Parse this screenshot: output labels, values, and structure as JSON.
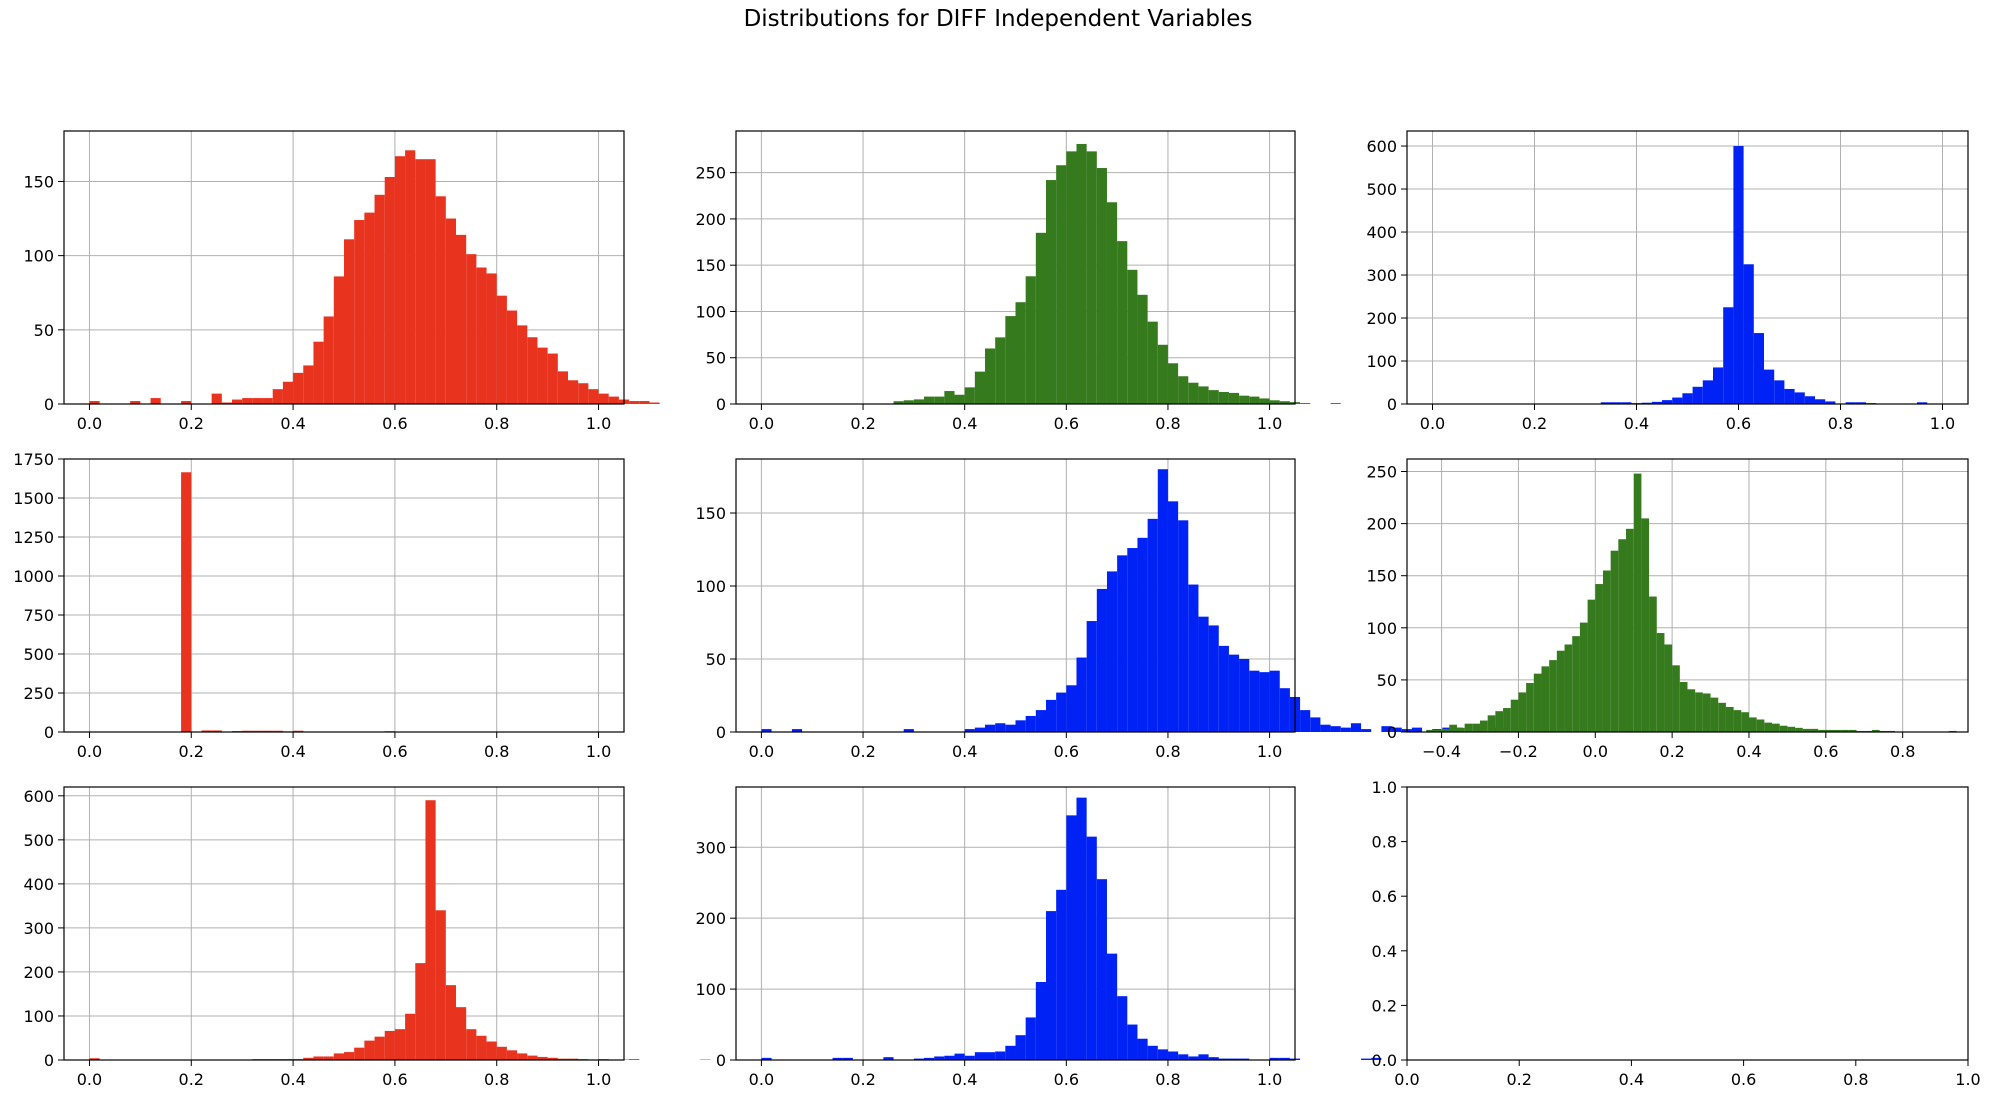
{
  "title": "Distributions for DIFF Independent Variables",
  "colors": {
    "red": "#e8341f",
    "green": "#367a1e",
    "blue": "#0022f5",
    "grid": "#b0b0b0"
  },
  "chart_data": [
    {
      "type": "histogram",
      "color": "#e8341f",
      "grid": true,
      "bins": {
        "start": 0.0,
        "width": 0.02
      },
      "values": [
        2,
        0,
        0,
        0,
        2,
        0,
        4,
        0,
        0,
        2,
        0,
        0,
        7,
        1,
        3,
        4,
        4,
        4,
        10,
        15,
        21,
        26,
        42,
        59,
        86,
        111,
        124,
        129,
        141,
        153,
        167,
        171,
        165,
        165,
        140,
        125,
        114,
        101,
        92,
        88,
        73,
        63,
        53,
        45,
        38,
        34,
        22,
        16,
        14,
        10,
        7,
        5,
        3,
        2,
        2,
        1,
        0,
        0,
        0,
        0,
        0,
        0,
        0,
        0,
        0,
        0,
        0,
        0,
        0,
        0,
        0,
        0,
        0,
        0,
        0,
        0,
        0,
        0,
        0,
        0,
        1
      ],
      "xlim": [
        -0.05,
        1.05
      ],
      "ylim": [
        0,
        184
      ],
      "xticks": [
        0,
        0.2,
        0.4,
        0.6,
        0.8,
        1.0
      ],
      "xtick_labels": [
        "0.0",
        "0.2",
        "0.4",
        "0.6",
        "0.8",
        "1.0"
      ],
      "yticks": [
        0,
        50,
        100,
        150
      ],
      "ytick_labels": [
        "0",
        "50",
        "100",
        "150"
      ]
    },
    {
      "type": "histogram",
      "color": "#367a1e",
      "grid": true,
      "bins": {
        "start": 0.0,
        "width": 0.02
      },
      "values": [
        0,
        0,
        0,
        0,
        0,
        0,
        0,
        0,
        0,
        0,
        0,
        0,
        0,
        3,
        4,
        5,
        8,
        8,
        14,
        10,
        18,
        35,
        60,
        72,
        95,
        110,
        138,
        185,
        242,
        258,
        273,
        281,
        273,
        255,
        218,
        176,
        145,
        118,
        89,
        64,
        44,
        30,
        23,
        19,
        15,
        13,
        12,
        9,
        8,
        6,
        4,
        3,
        2,
        1,
        0,
        0,
        1
      ],
      "xlim": [
        -0.05,
        1.05
      ],
      "ylim": [
        0,
        295
      ],
      "xticks": [
        0,
        0.2,
        0.4,
        0.6,
        0.8,
        1.0
      ],
      "xtick_labels": [
        "0.0",
        "0.2",
        "0.4",
        "0.6",
        "0.8",
        "1.0"
      ],
      "yticks": [
        0,
        50,
        100,
        150,
        200,
        250
      ],
      "ytick_labels": [
        "0",
        "50",
        "100",
        "150",
        "200",
        "250"
      ]
    },
    {
      "type": "histogram",
      "color": "#0022f5",
      "grid": true,
      "bins": {
        "start": 0.33,
        "width": 0.02
      },
      "values": [
        4,
        4,
        4,
        2,
        3,
        5,
        9,
        15,
        25,
        40,
        55,
        85,
        225,
        600,
        325,
        165,
        80,
        55,
        35,
        27,
        18,
        11,
        6,
        0,
        4,
        4,
        2,
        0,
        0,
        0,
        0,
        4
      ],
      "xlim": [
        -0.05,
        1.05
      ],
      "ylim": [
        0,
        635
      ],
      "xticks": [
        0,
        0.2,
        0.4,
        0.6,
        0.8,
        1.0
      ],
      "xtick_labels": [
        "0.0",
        "0.2",
        "0.4",
        "0.6",
        "0.8",
        "1.0"
      ],
      "yticks": [
        0,
        100,
        200,
        300,
        400,
        500,
        600
      ],
      "ytick_labels": [
        "0",
        "100",
        "200",
        "300",
        "400",
        "500",
        "600"
      ]
    },
    {
      "type": "histogram",
      "color": "#e8341f",
      "grid": true,
      "bins": {
        "start": 0.18,
        "width": 0.02
      },
      "values": [
        1665,
        0,
        10,
        10,
        0,
        6,
        8,
        8,
        8,
        8,
        4,
        8,
        0,
        0,
        0,
        0,
        0,
        0,
        0,
        0,
        5
      ],
      "xlim": [
        -0.05,
        1.05
      ],
      "ylim": [
        0,
        1750
      ],
      "xticks": [
        0,
        0.2,
        0.4,
        0.6,
        0.8,
        1.0
      ],
      "xtick_labels": [
        "0.0",
        "0.2",
        "0.4",
        "0.6",
        "0.8",
        "1.0"
      ],
      "yticks": [
        0,
        250,
        500,
        750,
        1000,
        1250,
        1500,
        1750
      ],
      "ytick_labels": [
        "0",
        "250",
        "500",
        "750",
        "1000",
        "1250",
        "1500",
        "1750"
      ]
    },
    {
      "type": "histogram",
      "color": "#0022f5",
      "grid": true,
      "bins": {
        "start": 0.0,
        "width": 0.02
      },
      "values": [
        2,
        0,
        0,
        2,
        0,
        0,
        0,
        0,
        0,
        0,
        0,
        0,
        0,
        0,
        2,
        0,
        0,
        0,
        0,
        0,
        2,
        3,
        5,
        6,
        5,
        8,
        11,
        15,
        22,
        27,
        32,
        51,
        76,
        98,
        110,
        121,
        126,
        133,
        146,
        180,
        158,
        145,
        101,
        79,
        73,
        59,
        53,
        50,
        42,
        41,
        42,
        30,
        24,
        15,
        10,
        5,
        4,
        3,
        6,
        2,
        0,
        4,
        3,
        2,
        3,
        0,
        2,
        3,
        3,
        0,
        2,
        0,
        3
      ],
      "xlim": [
        -0.05,
        1.05
      ],
      "ylim": [
        0,
        187
      ],
      "xticks": [
        0,
        0.2,
        0.4,
        0.6,
        0.8,
        1.0
      ],
      "xtick_labels": [
        "0.0",
        "0.2",
        "0.4",
        "0.6",
        "0.8",
        "1.0"
      ],
      "yticks": [
        0,
        50,
        100,
        150
      ],
      "ytick_labels": [
        "0",
        "50",
        "100",
        "150"
      ]
    },
    {
      "type": "histogram",
      "color": "#367a1e",
      "grid": true,
      "bins": {
        "start": -0.44,
        "width": 0.02
      },
      "values": [
        2,
        2,
        3,
        7,
        4,
        8,
        8,
        11,
        16,
        20,
        23,
        31,
        38,
        47,
        56,
        63,
        69,
        78,
        84,
        92,
        105,
        127,
        142,
        155,
        174,
        185,
        195,
        248,
        205,
        130,
        95,
        84,
        64,
        48,
        41,
        38,
        37,
        33,
        28,
        24,
        21,
        19,
        14,
        12,
        9,
        8,
        6,
        5,
        4,
        3,
        3,
        2,
        2,
        2,
        2,
        2,
        1,
        1,
        2,
        1,
        1,
        0,
        0,
        0,
        0,
        0,
        0,
        0,
        1
      ],
      "xlim": [
        -0.49,
        0.97
      ],
      "ylim": [
        0,
        262
      ],
      "xticks": [
        -0.4,
        -0.2,
        0,
        0.2,
        0.4,
        0.6,
        0.8
      ],
      "xtick_labels": [
        "−0.4",
        "−0.2",
        "0.0",
        "0.2",
        "0.4",
        "0.6",
        "0.8"
      ],
      "yticks": [
        0,
        50,
        100,
        150,
        200,
        250
      ],
      "ytick_labels": [
        "0",
        "50",
        "100",
        "150",
        "200",
        "250"
      ]
    },
    {
      "type": "histogram",
      "color": "#e8341f",
      "grid": true,
      "bins": {
        "start": 0.0,
        "width": 0.02
      },
      "values": [
        4,
        0,
        0,
        0,
        0,
        0,
        0,
        0,
        0,
        0,
        0,
        0,
        0,
        0,
        0,
        0,
        2,
        2,
        2,
        2,
        2,
        5,
        8,
        8,
        15,
        18,
        28,
        44,
        53,
        66,
        70,
        105,
        220,
        590,
        340,
        170,
        120,
        70,
        55,
        42,
        30,
        22,
        15,
        10,
        7,
        5,
        3,
        3,
        2,
        1,
        2,
        1,
        1,
        2,
        0,
        0,
        0,
        0,
        0,
        0,
        1
      ],
      "xlim": [
        -0.05,
        1.05
      ],
      "ylim": [
        0,
        620
      ],
      "xticks": [
        0,
        0.2,
        0.4,
        0.6,
        0.8,
        1.0
      ],
      "xtick_labels": [
        "0.0",
        "0.2",
        "0.4",
        "0.6",
        "0.8",
        "1.0"
      ],
      "yticks": [
        0,
        100,
        200,
        300,
        400,
        500,
        600
      ],
      "ytick_labels": [
        "0",
        "100",
        "200",
        "300",
        "400",
        "500",
        "600"
      ]
    },
    {
      "type": "histogram",
      "color": "#0022f5",
      "grid": true,
      "bins": {
        "start": 0.0,
        "width": 0.02
      },
      "values": [
        3,
        0,
        0,
        0,
        0,
        0,
        0,
        3,
        3,
        0,
        0,
        0,
        4,
        0,
        0,
        2,
        3,
        5,
        6,
        9,
        6,
        11,
        11,
        12,
        20,
        35,
        60,
        110,
        210,
        240,
        345,
        370,
        315,
        255,
        150,
        90,
        50,
        30,
        20,
        15,
        12,
        8,
        5,
        8,
        4,
        2,
        2,
        2,
        0,
        0,
        3,
        3,
        2,
        0,
        0,
        0,
        0,
        0,
        0,
        2,
        3
      ],
      "xlim": [
        -0.05,
        1.05
      ],
      "ylim": [
        0,
        385
      ],
      "xticks": [
        0,
        0.2,
        0.4,
        0.6,
        0.8,
        1.0
      ],
      "xtick_labels": [
        "0.0",
        "0.2",
        "0.4",
        "0.6",
        "0.8",
        "1.0"
      ],
      "yticks": [
        0,
        100,
        200,
        300
      ],
      "ytick_labels": [
        "0",
        "100",
        "200",
        "300"
      ]
    },
    {
      "type": "empty",
      "grid": false,
      "xlim": [
        0,
        1
      ],
      "ylim": [
        0,
        1
      ],
      "xticks": [
        0,
        0.2,
        0.4,
        0.6,
        0.8,
        1.0
      ],
      "xtick_labels": [
        "0.0",
        "0.2",
        "0.4",
        "0.6",
        "0.8",
        "1.0"
      ],
      "yticks": [
        0,
        0.2,
        0.4,
        0.6,
        0.8,
        1.0
      ],
      "ytick_labels": [
        "0.0",
        "0.2",
        "0.4",
        "0.6",
        "0.8",
        "1.0"
      ]
    }
  ]
}
